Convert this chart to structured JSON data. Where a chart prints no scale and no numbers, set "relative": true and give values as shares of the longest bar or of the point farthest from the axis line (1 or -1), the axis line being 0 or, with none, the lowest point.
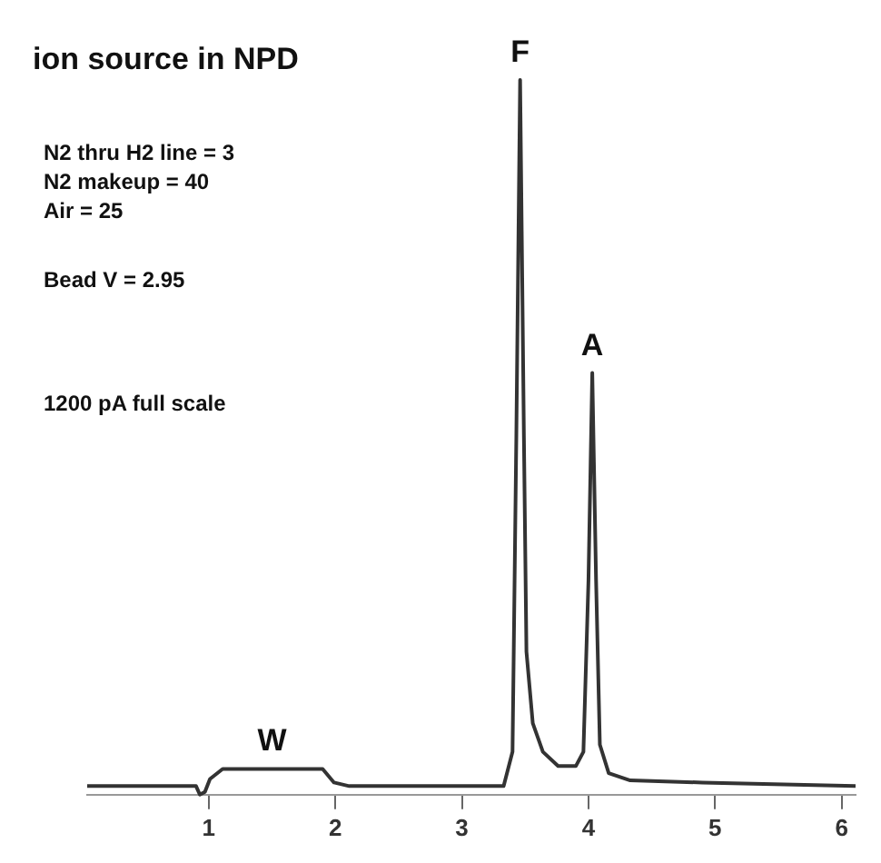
{
  "chart_data": {
    "type": "line",
    "title": "ion source in NPD",
    "relative": true,
    "color": "#333333",
    "marker": "none",
    "grid": false,
    "legend": false,
    "x": [
      0.04,
      0.9,
      0.93,
      0.97,
      1.01,
      1.11,
      1.9,
      1.99,
      2.11,
      3.33,
      3.4,
      3.43,
      3.46,
      3.49,
      3.51,
      3.56,
      3.64,
      3.76,
      3.9,
      3.96,
      4.0,
      4.03,
      4.06,
      4.09,
      4.16,
      4.33,
      4.9,
      6.11
    ],
    "values": [
      0.012,
      0.012,
      0,
      0.004,
      0.022,
      0.036,
      0.036,
      0.017,
      0.012,
      0.012,
      0.06,
      0.5,
      1,
      0.5,
      0.2,
      0.1,
      0.06,
      0.04,
      0.04,
      0.06,
      0.3,
      0.59,
      0.3,
      0.07,
      0.03,
      0.02,
      0.017,
      0.012
    ],
    "xlim": [
      0.04,
      6.11
    ],
    "xticks": [
      1,
      2,
      3,
      4,
      5,
      6
    ],
    "annotations": [
      "N2 thru H2 line = 3\nN2 makeup = 40\nAir = 25",
      "Bead V = 2.95",
      "1200 pA full scale",
      {
        "text": "W",
        "x": 1.5,
        "y": 0.036
      },
      {
        "text": "F",
        "x": 3.46,
        "y": 1
      },
      {
        "text": "A",
        "x": 4.03,
        "y": 0.59
      }
    ]
  }
}
